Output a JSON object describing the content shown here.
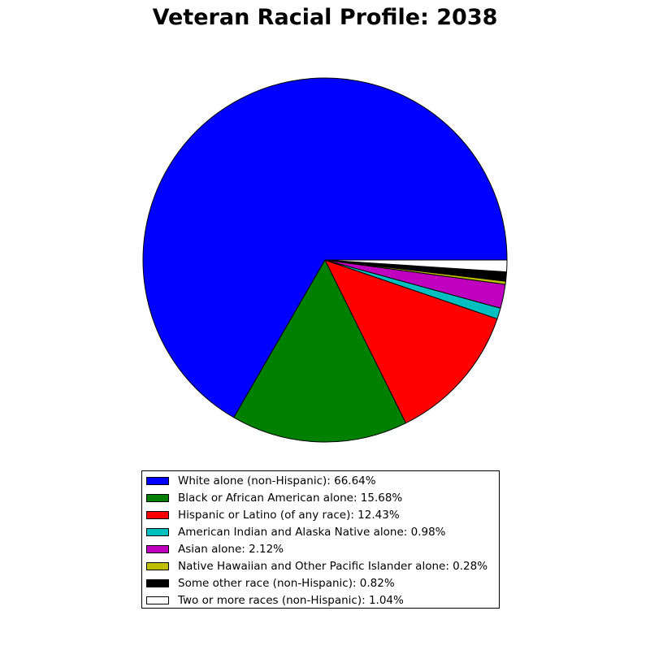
{
  "chart_data": {
    "type": "pie",
    "title": "Veteran Racial Profile: 2038",
    "slices": [
      {
        "label": "White alone (non-Hispanic)",
        "legend": "White alone (non-Hispanic): 66.64%",
        "value": 66.64,
        "color": "#0000ff"
      },
      {
        "label": "Black or African American alone",
        "legend": "Black or African American alone: 15.68%",
        "value": 15.68,
        "color": "#008000"
      },
      {
        "label": "Hispanic or Latino (of any race)",
        "legend": "Hispanic or Latino (of any race): 12.43%",
        "value": 12.43,
        "color": "#ff0000"
      },
      {
        "label": "American Indian and Alaska Native alone",
        "legend": "American Indian and Alaska Native alone: 0.98%",
        "value": 0.98,
        "color": "#00bfbf"
      },
      {
        "label": "Asian alone",
        "legend": "Asian alone: 2.12%",
        "value": 2.12,
        "color": "#bf00bf"
      },
      {
        "label": "Native Hawaiian and Other Pacific Islander alone",
        "legend": "Native Hawaiian and Other Pacific Islander alone: 0.28%",
        "value": 0.28,
        "color": "#bfbf00"
      },
      {
        "label": "Some other race (non-Hispanic)",
        "legend": "Some other race (non-Hispanic): 0.82%",
        "value": 0.82,
        "color": "#000000"
      },
      {
        "label": "Two or more races (non-Hispanic)",
        "legend": "Two or more races (non-Hispanic): 1.04%",
        "value": 1.04,
        "color": "#ffffff"
      }
    ],
    "legend_placement": "bottom-center"
  }
}
